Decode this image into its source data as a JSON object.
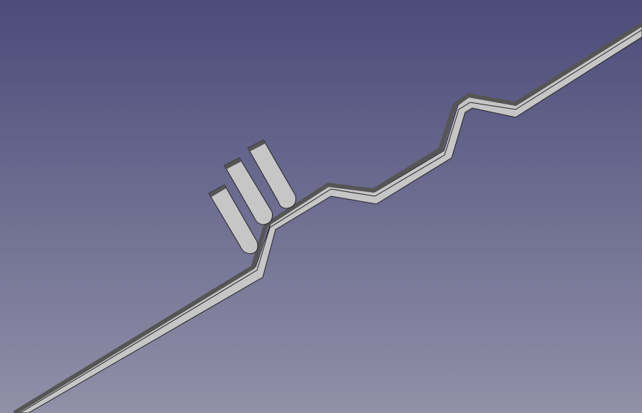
{
  "viewport": {
    "background_top": "#4c4b7a",
    "background_bottom": "#9090a8"
  },
  "model": {
    "face_color": "#c6c6c6",
    "edge_color": "#555555",
    "outline_color": "#222222"
  }
}
